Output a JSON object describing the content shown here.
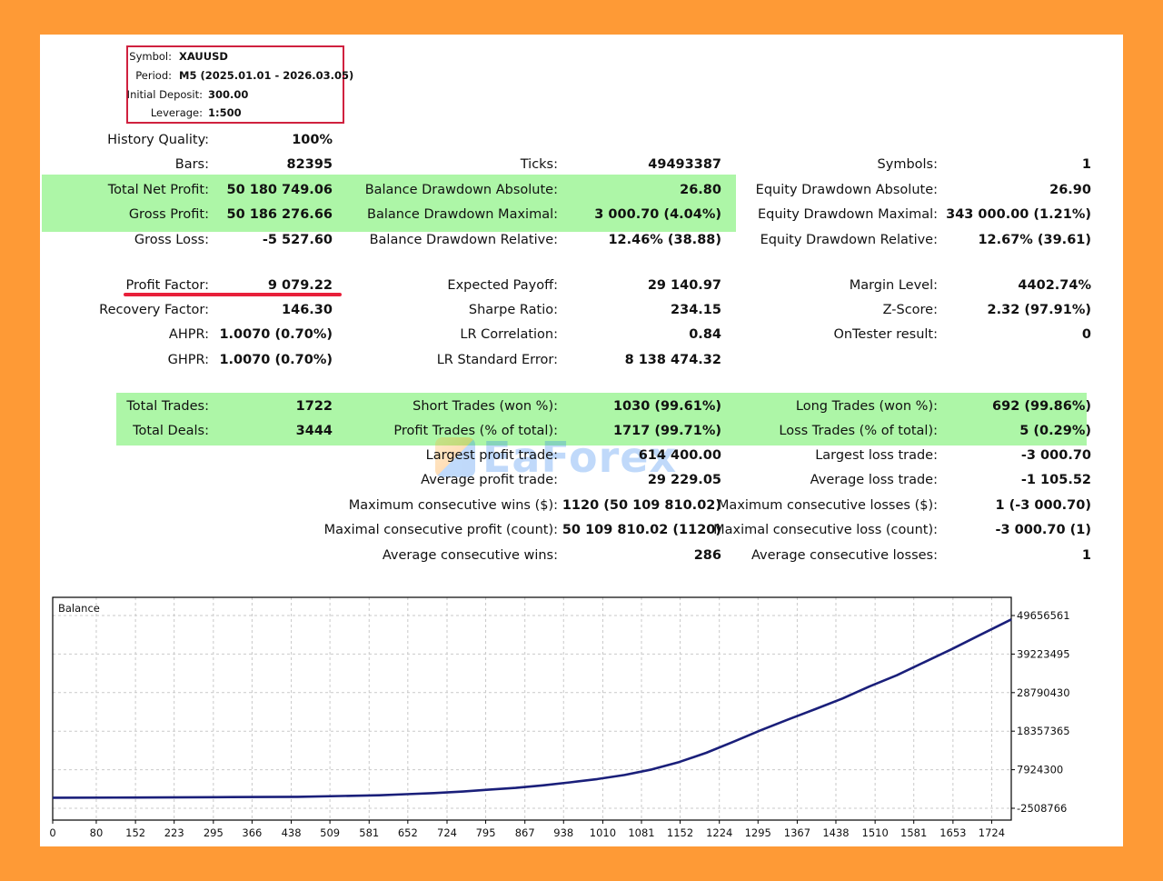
{
  "info": {
    "symbol_label": "Symbol:",
    "symbol": "XAUUSD",
    "period_label": "Period:",
    "period": "M5 (2025.01.01 - 2026.03.05)",
    "deposit_label": "Initial Deposit:",
    "deposit": "300.00",
    "leverage_label": "Leverage:",
    "leverage": "1:500"
  },
  "stats": {
    "history_quality": {
      "label": "History Quality:",
      "value": "100%"
    },
    "bars": {
      "label": "Bars:",
      "value": "82395"
    },
    "ticks": {
      "label": "Ticks:",
      "value": "49493387"
    },
    "symbols": {
      "label": "Symbols:",
      "value": "1"
    },
    "total_net_profit": {
      "label": "Total Net Profit:",
      "value": "50 180 749.06"
    },
    "balance_dd_abs": {
      "label": "Balance Drawdown Absolute:",
      "value": "26.80"
    },
    "equity_dd_abs": {
      "label": "Equity Drawdown Absolute:",
      "value": "26.90"
    },
    "gross_profit": {
      "label": "Gross Profit:",
      "value": "50 186 276.66"
    },
    "balance_dd_max": {
      "label": "Balance Drawdown Maximal:",
      "value": "3 000.70 (4.04%)"
    },
    "equity_dd_max": {
      "label": "Equity Drawdown Maximal:",
      "value": "343 000.00 (1.21%)"
    },
    "gross_loss": {
      "label": "Gross Loss:",
      "value": "-5 527.60"
    },
    "balance_dd_rel": {
      "label": "Balance Drawdown Relative:",
      "value": "12.46% (38.88)"
    },
    "equity_dd_rel": {
      "label": "Equity Drawdown Relative:",
      "value": "12.67% (39.61)"
    },
    "profit_factor": {
      "label": "Profit Factor:",
      "value": "9 079.22"
    },
    "expected_payoff": {
      "label": "Expected Payoff:",
      "value": "29 140.97"
    },
    "margin_level": {
      "label": "Margin Level:",
      "value": "4402.74%"
    },
    "recovery_factor": {
      "label": "Recovery Factor:",
      "value": "146.30"
    },
    "sharpe_ratio": {
      "label": "Sharpe Ratio:",
      "value": "234.15"
    },
    "z_score": {
      "label": "Z-Score:",
      "value": "2.32 (97.91%)"
    },
    "ahpr": {
      "label": "AHPR:",
      "value": "1.0070 (0.70%)"
    },
    "lr_correlation": {
      "label": "LR Correlation:",
      "value": "0.84"
    },
    "ontester": {
      "label": "OnTester result:",
      "value": "0"
    },
    "ghpr": {
      "label": "GHPR:",
      "value": "1.0070 (0.70%)"
    },
    "lr_std_error": {
      "label": "LR Standard Error:",
      "value": "8 138 474.32"
    },
    "total_trades": {
      "label": "Total Trades:",
      "value": "1722"
    },
    "short_trades": {
      "label": "Short Trades (won %):",
      "value": "1030 (99.61%)"
    },
    "long_trades": {
      "label": "Long Trades (won %):",
      "value": "692 (99.86%)"
    },
    "total_deals": {
      "label": "Total Deals:",
      "value": "3444"
    },
    "profit_trades": {
      "label": "Profit Trades (% of total):",
      "value": "1717 (99.71%)"
    },
    "loss_trades": {
      "label": "Loss Trades (% of total):",
      "value": "5 (0.29%)"
    },
    "largest_profit": {
      "label": "Largest profit trade:",
      "value": "614 400.00"
    },
    "largest_loss": {
      "label": "Largest loss trade:",
      "value": "-3 000.70"
    },
    "avg_profit": {
      "label": "Average profit trade:",
      "value": "29 229.05"
    },
    "avg_loss": {
      "label": "Average loss trade:",
      "value": "-1 105.52"
    },
    "max_consec_wins": {
      "label": "Maximum consecutive wins ($):",
      "value": "1120 (50 109 810.02)"
    },
    "max_consec_losses": {
      "label": "Maximum consecutive losses ($):",
      "value": "1 (-3 000.70)"
    },
    "maximal_consec_profit": {
      "label": "Maximal consecutive profit (count):",
      "value": "50 109 810.02 (1120)"
    },
    "maximal_consec_loss": {
      "label": "Maximal consecutive loss (count):",
      "value": "-3 000.70 (1)"
    },
    "avg_consec_wins": {
      "label": "Average consecutive wins:",
      "value": "286"
    },
    "avg_consec_losses": {
      "label": "Average consecutive losses:",
      "value": "1"
    }
  },
  "watermark": {
    "text": "EaForex",
    "logo": "eaforex-logo"
  },
  "colors": {
    "highlight": "#adf6a7",
    "underline": "#e8203a",
    "line": "#1a1f7a",
    "frame": "#fe9a36"
  },
  "chart_data": {
    "type": "line",
    "title": "Balance",
    "x_ticks": [
      "0",
      "80",
      "152",
      "223",
      "295",
      "366",
      "438",
      "509",
      "581",
      "652",
      "724",
      "795",
      "867",
      "938",
      "1010",
      "1081",
      "1152",
      "1224",
      "1295",
      "1367",
      "1438",
      "1510",
      "1581",
      "1653",
      "1724"
    ],
    "y_ticks": [
      "49656561",
      "39223495",
      "28790430",
      "18357365",
      "7924300",
      "-2508766"
    ],
    "xlim": [
      0,
      1760
    ],
    "ylim": [
      -2508766,
      49656561
    ],
    "grid": true,
    "series": [
      {
        "x": [
          0,
          150,
          300,
          450,
          600,
          650,
          700,
          750,
          800,
          850,
          900,
          950,
          1000,
          1050,
          1100,
          1150,
          1200,
          1250,
          1300,
          1350,
          1400,
          1450,
          1500,
          1550,
          1600,
          1650,
          1700,
          1760
        ],
        "y": [
          350,
          400,
          500,
          600,
          1000,
          1300,
          1600,
          2000,
          2500,
          3000,
          3700,
          4500,
          5400,
          6500,
          8000,
          10000,
          12500,
          15500,
          18600,
          21500,
          24300,
          27200,
          30500,
          33500,
          37000,
          40500,
          44200,
          48600
        ]
      }
    ]
  }
}
